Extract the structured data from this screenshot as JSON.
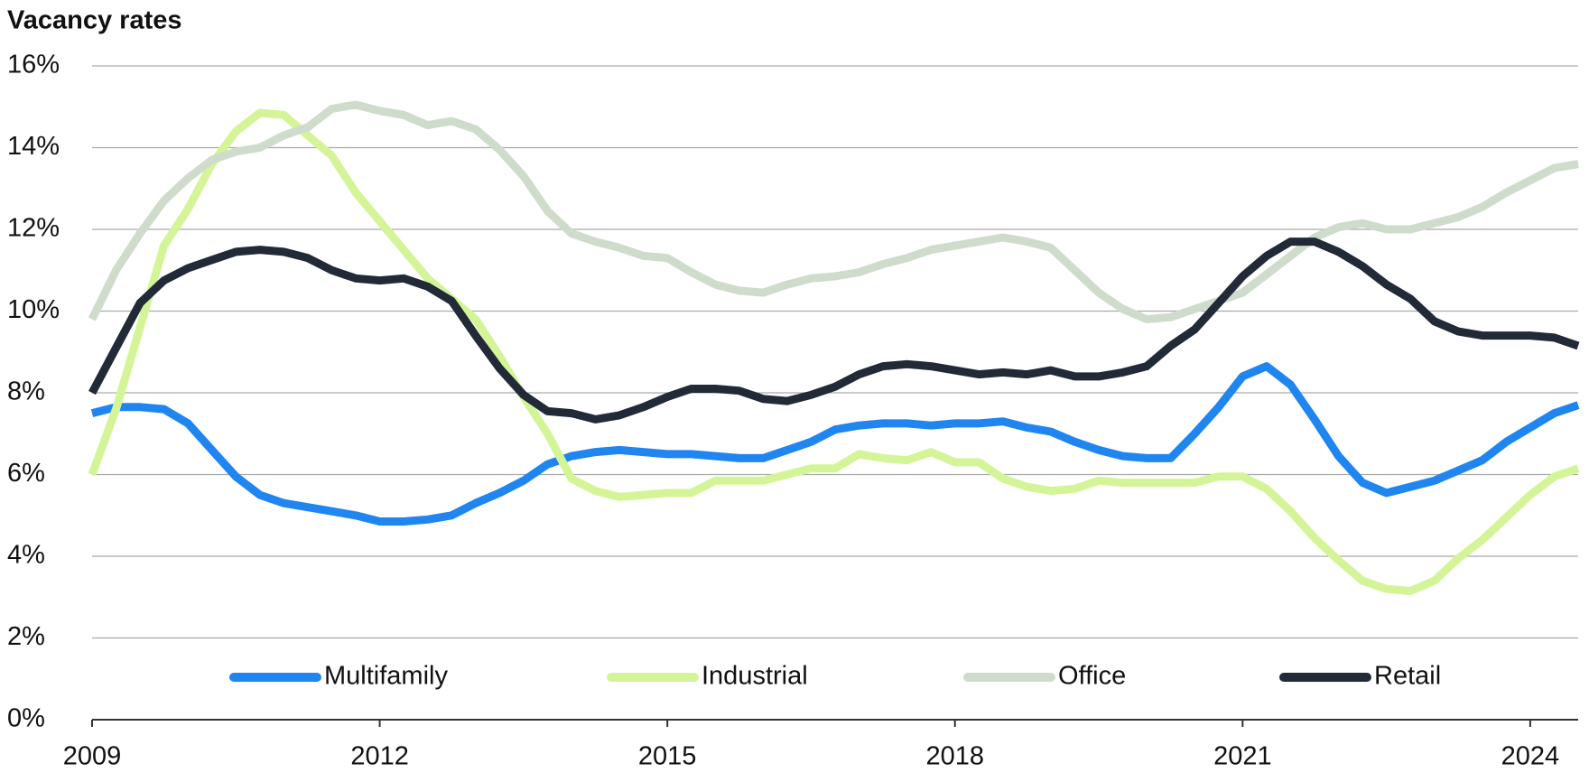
{
  "chart_data": {
    "type": "line",
    "title": "Vacancy rates",
    "x": [
      2009,
      2009.25,
      2009.5,
      2009.75,
      2010,
      2010.25,
      2010.5,
      2010.75,
      2011,
      2011.25,
      2011.5,
      2011.75,
      2012,
      2012.25,
      2012.5,
      2012.75,
      2013,
      2013.25,
      2013.5,
      2013.75,
      2014,
      2014.25,
      2014.5,
      2014.75,
      2015,
      2015.25,
      2015.5,
      2015.75,
      2016,
      2016.25,
      2016.5,
      2016.75,
      2017,
      2017.25,
      2017.5,
      2017.75,
      2018,
      2018.25,
      2018.5,
      2018.75,
      2019,
      2019.25,
      2019.5,
      2019.75,
      2020,
      2020.25,
      2020.5,
      2020.75,
      2021,
      2021.25,
      2021.5,
      2021.75,
      2022,
      2022.25,
      2022.5,
      2022.75,
      2023,
      2023.25,
      2023.5,
      2023.75,
      2024,
      2024.25,
      2024.5
    ],
    "series": [
      {
        "name": "Multifamily",
        "color": "#1f85f0",
        "values": [
          7.5,
          7.65,
          7.65,
          7.6,
          7.25,
          6.6,
          5.95,
          5.5,
          5.3,
          5.2,
          5.1,
          5.0,
          4.85,
          4.85,
          4.9,
          5.0,
          5.3,
          5.55,
          5.85,
          6.25,
          6.45,
          6.55,
          6.6,
          6.55,
          6.5,
          6.5,
          6.45,
          6.4,
          6.4,
          6.6,
          6.8,
          7.1,
          7.2,
          7.25,
          7.25,
          7.2,
          7.25,
          7.25,
          7.3,
          7.15,
          7.05,
          6.8,
          6.6,
          6.45,
          6.4,
          6.4,
          7.0,
          7.65,
          8.4,
          8.65,
          8.2,
          7.35,
          6.45,
          5.8,
          5.55,
          5.7,
          5.85,
          6.1,
          6.35,
          6.8,
          7.15,
          7.5,
          7.7
        ]
      },
      {
        "name": "Industrial",
        "color": "#d4f597",
        "values": [
          6.0,
          7.6,
          9.6,
          11.6,
          12.5,
          13.6,
          14.4,
          14.85,
          14.8,
          14.3,
          13.8,
          12.9,
          12.2,
          11.5,
          10.8,
          10.3,
          9.8,
          8.9,
          7.9,
          7.0,
          5.9,
          5.6,
          5.45,
          5.5,
          5.55,
          5.55,
          5.85,
          5.85,
          5.85,
          6.0,
          6.15,
          6.15,
          6.5,
          6.4,
          6.35,
          6.55,
          6.3,
          6.3,
          5.9,
          5.7,
          5.6,
          5.65,
          5.85,
          5.8,
          5.8,
          5.8,
          5.8,
          5.95,
          5.95,
          5.65,
          5.1,
          4.45,
          3.9,
          3.4,
          3.2,
          3.15,
          3.4,
          3.95,
          4.4,
          4.95,
          5.5,
          5.95,
          6.15
        ]
      },
      {
        "name": "Office",
        "color": "#cfdccb",
        "values": [
          9.8,
          11.0,
          11.9,
          12.7,
          13.25,
          13.7,
          13.9,
          14.0,
          14.3,
          14.5,
          14.95,
          15.05,
          14.9,
          14.8,
          14.55,
          14.65,
          14.45,
          13.95,
          13.3,
          12.45,
          11.9,
          11.7,
          11.55,
          11.35,
          11.3,
          10.95,
          10.65,
          10.5,
          10.45,
          10.65,
          10.8,
          10.85,
          10.95,
          11.15,
          11.3,
          11.5,
          11.6,
          11.7,
          11.8,
          11.7,
          11.55,
          11.0,
          10.45,
          10.05,
          9.8,
          9.85,
          10.05,
          10.25,
          10.45,
          10.9,
          11.35,
          11.8,
          12.05,
          12.15,
          12.0,
          12.0,
          12.15,
          12.3,
          12.55,
          12.9,
          13.2,
          13.5,
          13.6
        ]
      },
      {
        "name": "Retail",
        "color": "#222a38",
        "values": [
          8.0,
          9.1,
          10.2,
          10.75,
          11.05,
          11.25,
          11.45,
          11.5,
          11.45,
          11.3,
          11.0,
          10.8,
          10.75,
          10.8,
          10.6,
          10.25,
          9.4,
          8.6,
          7.95,
          7.55,
          7.5,
          7.35,
          7.45,
          7.65,
          7.9,
          8.1,
          8.1,
          8.05,
          7.85,
          7.8,
          7.95,
          8.15,
          8.45,
          8.65,
          8.7,
          8.65,
          8.55,
          8.45,
          8.5,
          8.45,
          8.55,
          8.4,
          8.4,
          8.5,
          8.65,
          9.15,
          9.55,
          10.2,
          10.85,
          11.35,
          11.7,
          11.7,
          11.45,
          11.1,
          10.65,
          10.3,
          9.75,
          9.5,
          9.4,
          9.4,
          9.4,
          9.35,
          9.15
        ]
      }
    ],
    "xlim": [
      2009,
      2024.5
    ],
    "xticks": [
      2009,
      2012,
      2015,
      2018,
      2021,
      2024
    ],
    "ylim": [
      0,
      16
    ],
    "yticks": [
      {
        "value": 0,
        "label": "0%"
      },
      {
        "value": 2,
        "label": "2%"
      },
      {
        "value": 4,
        "label": "4%"
      },
      {
        "value": 6,
        "label": "6%"
      },
      {
        "value": 8,
        "label": "8%"
      },
      {
        "value": 10,
        "label": "10%"
      },
      {
        "value": 12,
        "label": "12%"
      },
      {
        "value": 14,
        "label": "14%"
      },
      {
        "value": 16,
        "label": "16%"
      }
    ],
    "grid": true,
    "legend": "bottom"
  }
}
